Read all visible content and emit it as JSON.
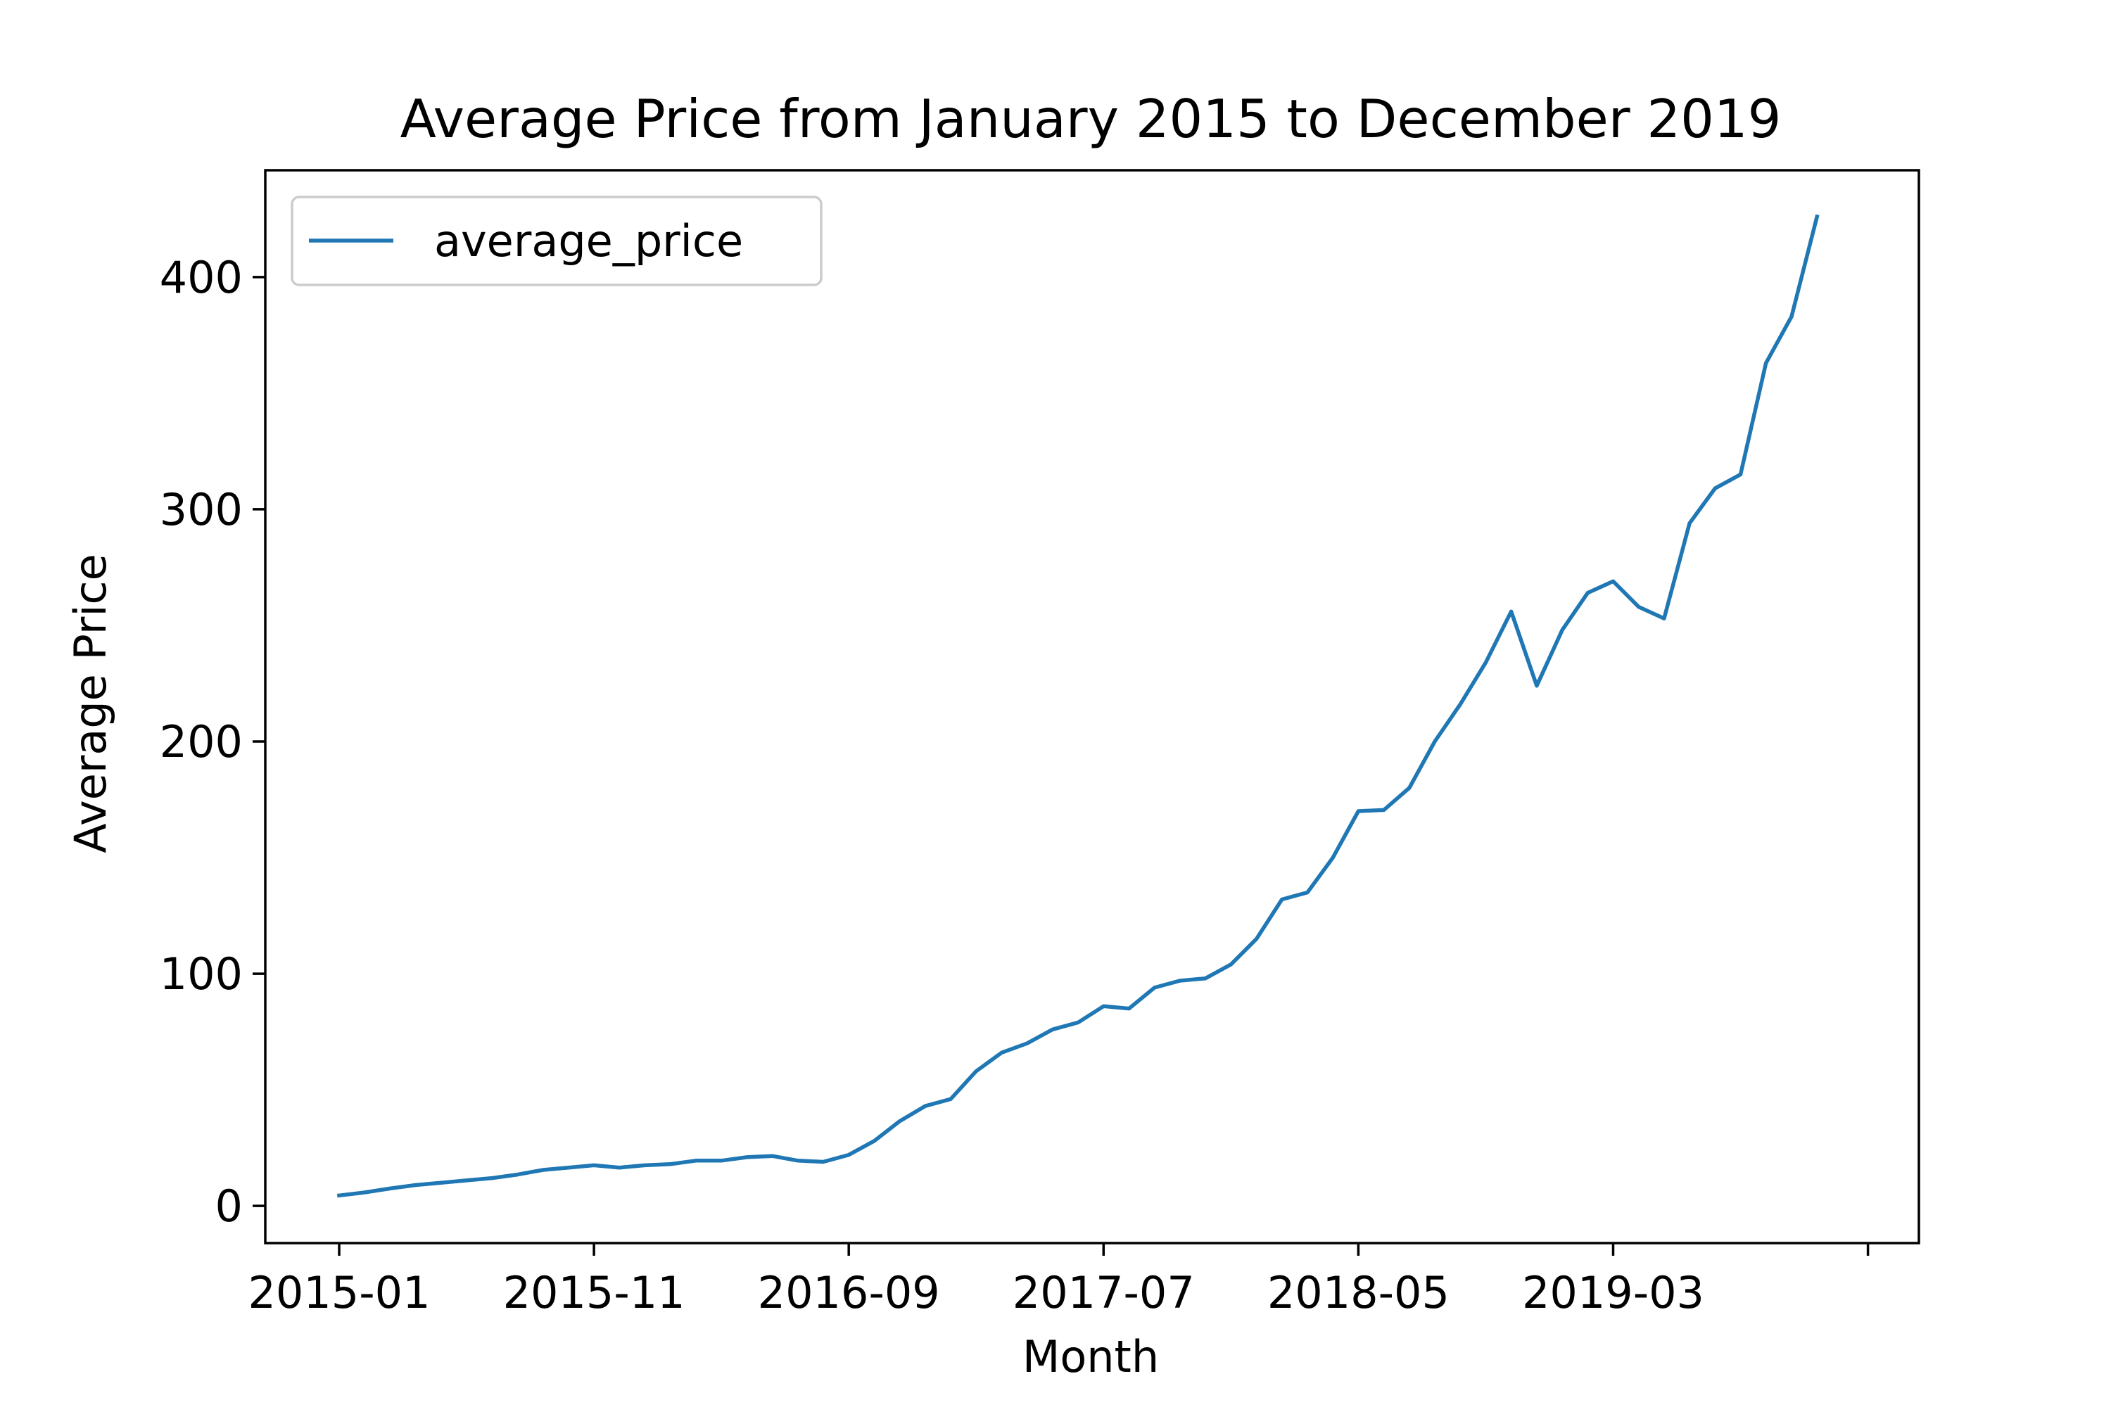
{
  "chart_data": {
    "type": "line",
    "title": "Average Price from January 2015 to December 2019",
    "xlabel": "Month",
    "ylabel": "Average Price",
    "ylim": [
      -16,
      446
    ],
    "yticks": [
      0,
      100,
      200,
      300,
      400
    ],
    "xticks": [
      "2015-01",
      "2015-11",
      "2016-09",
      "2017-07",
      "2018-05",
      "2019-03",
      ""
    ],
    "grid": false,
    "legend": {
      "position": "top-left",
      "entries": [
        "average_price"
      ]
    },
    "series": [
      {
        "name": "average_price",
        "color": "#1f77b4",
        "x": [
          "2015-01",
          "2015-02",
          "2015-03",
          "2015-04",
          "2015-05",
          "2015-06",
          "2015-07",
          "2015-08",
          "2015-09",
          "2015-10",
          "2015-11",
          "2015-12",
          "2016-01",
          "2016-02",
          "2016-03",
          "2016-04",
          "2016-05",
          "2016-06",
          "2016-07",
          "2016-08",
          "2016-09",
          "2016-10",
          "2016-11",
          "2016-12",
          "2017-01",
          "2017-02",
          "2017-03",
          "2017-04",
          "2017-05",
          "2017-06",
          "2017-07",
          "2017-08",
          "2017-09",
          "2017-10",
          "2017-11",
          "2017-12",
          "2018-01",
          "2018-02",
          "2018-03",
          "2018-04",
          "2018-05",
          "2018-06",
          "2018-07",
          "2018-08",
          "2018-09",
          "2018-10",
          "2018-11",
          "2018-12",
          "2019-01",
          "2019-02",
          "2019-03",
          "2019-04",
          "2019-05",
          "2019-06",
          "2019-07",
          "2019-08",
          "2019-09",
          "2019-10",
          "2019-11",
          "2019-12"
        ],
        "values": [
          4.5,
          5.8,
          7.5,
          9.0,
          10.0,
          11.0,
          12.0,
          13.5,
          15.5,
          16.5,
          17.5,
          16.5,
          17.5,
          18.0,
          19.5,
          19.5,
          21.0,
          21.5,
          19.5,
          19.0,
          22.0,
          28.0,
          36.5,
          43.0,
          46.0,
          58.0,
          66.0,
          70.0,
          76.0,
          79.0,
          86.0,
          85.0,
          94.0,
          97.0,
          98.0,
          104.0,
          115.0,
          132.0,
          135.0,
          150.0,
          170.0,
          170.5,
          180.0,
          200.0,
          216.0,
          234.0,
          256.0,
          224.0,
          248.0,
          264.0,
          269.0,
          258.0,
          253.0,
          294.0,
          309.0,
          315.0,
          363.0,
          383.0,
          426.0,
          null
        ]
      }
    ]
  }
}
